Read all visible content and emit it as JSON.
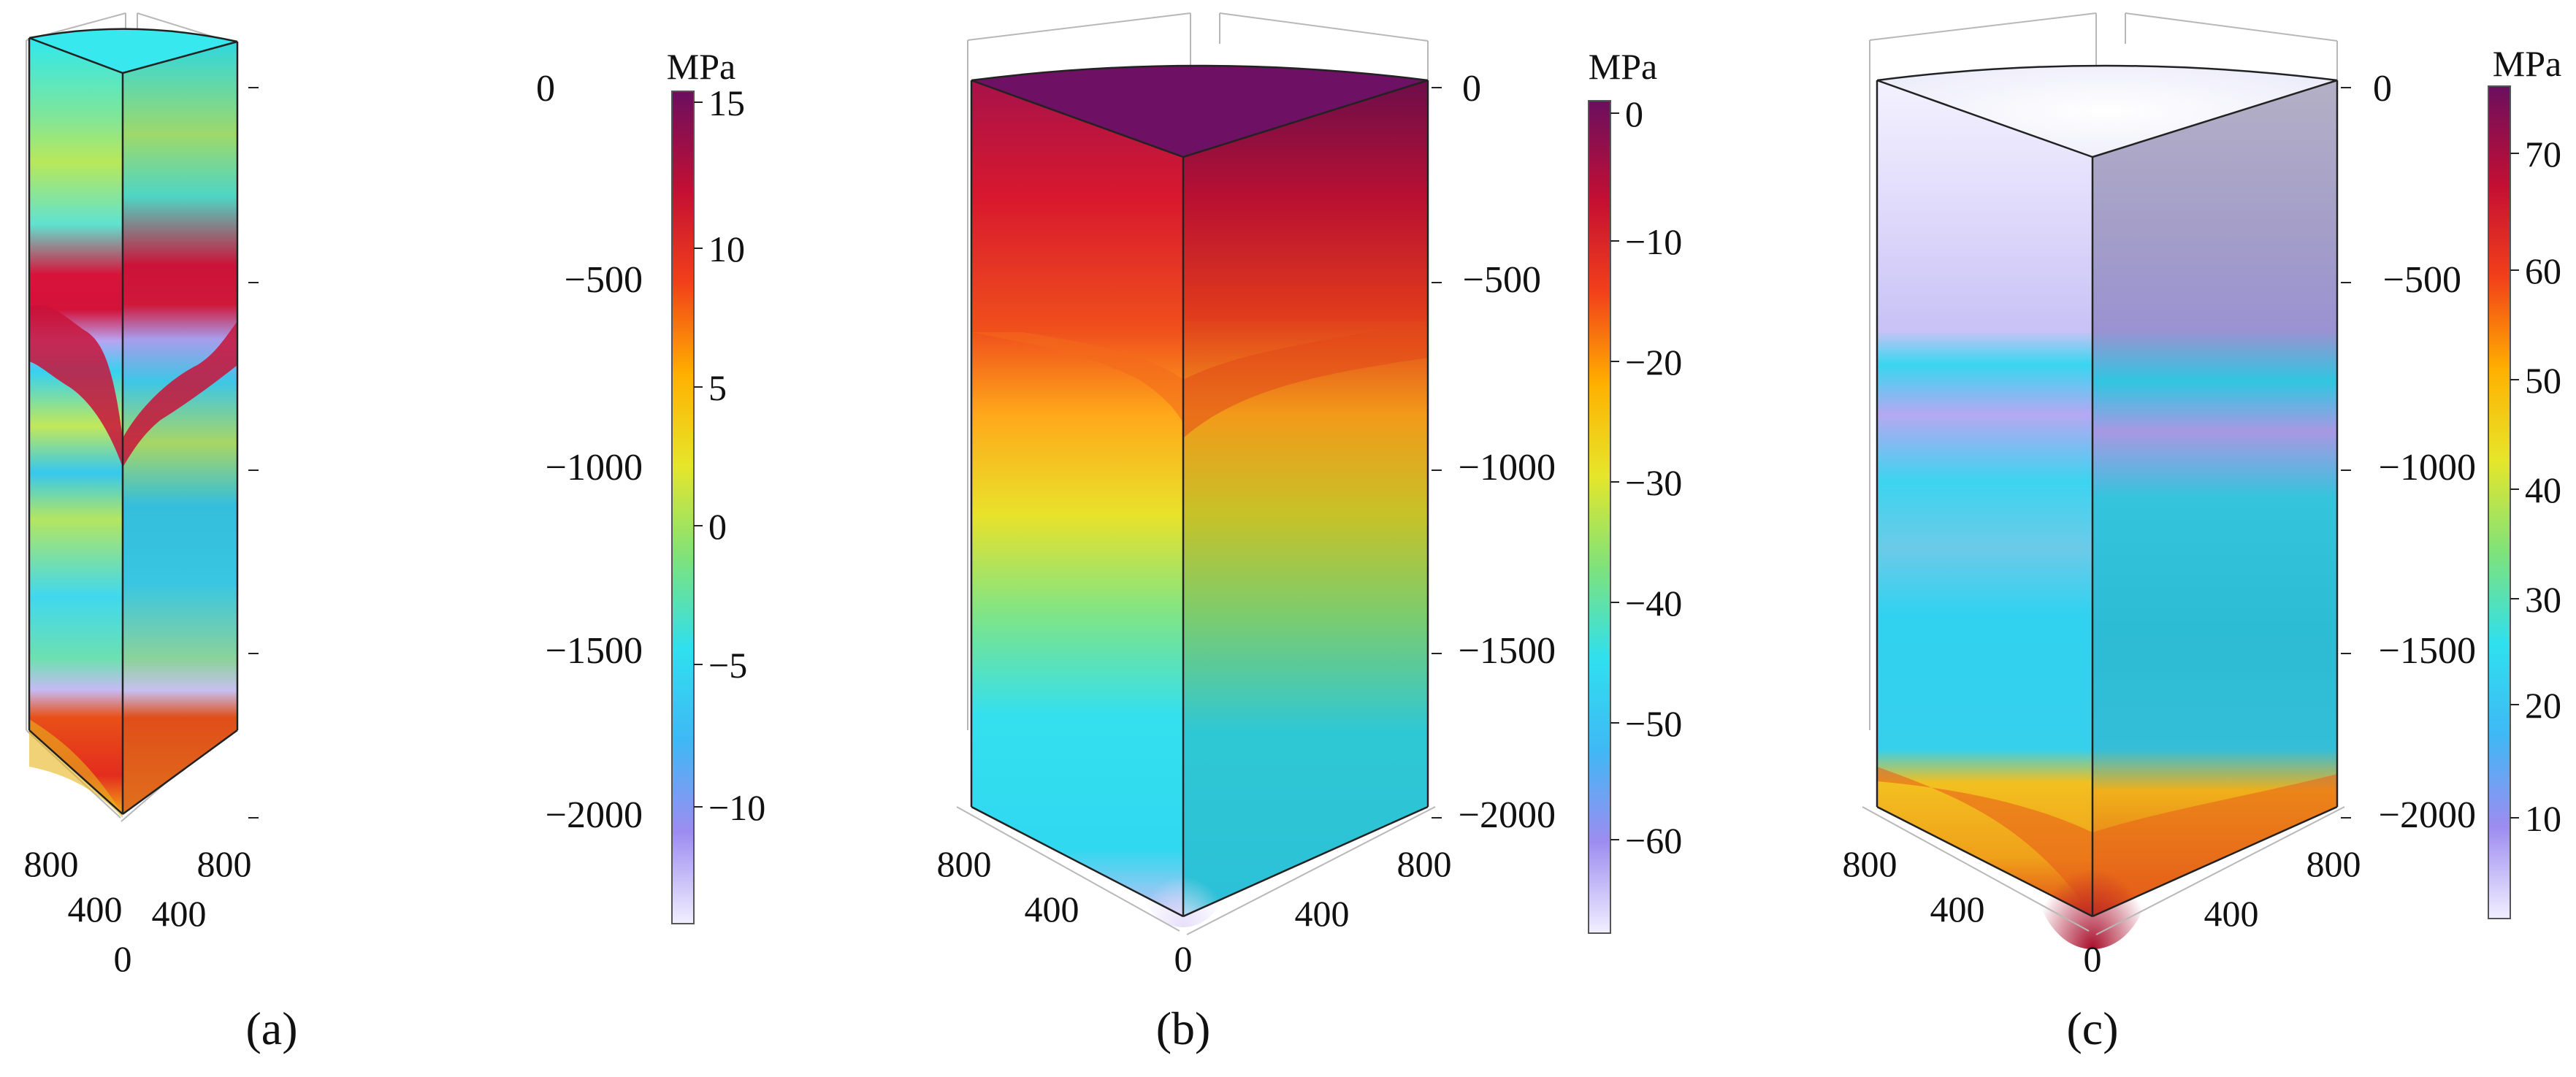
{
  "panels": [
    {
      "label": "(a)",
      "unit": "MPa",
      "colorbar_ticks": [
        "15",
        "10",
        "5",
        "0",
        "−5",
        "−10"
      ],
      "z_ticks": [
        "0",
        "−500",
        "−1000",
        "−1500",
        "−2000"
      ],
      "left_ticks": [
        "800",
        "400"
      ],
      "right_ticks": [
        "400",
        "800"
      ],
      "origin_tick": "0"
    },
    {
      "label": "(b)",
      "unit": "MPa",
      "colorbar_ticks": [
        "0",
        "−10",
        "−20",
        "−30",
        "−40",
        "−50",
        "−60"
      ],
      "z_ticks": [
        "0",
        "−500",
        "−1000",
        "−1500",
        "−2000"
      ],
      "left_ticks": [
        "800",
        "400"
      ],
      "right_ticks": [
        "400",
        "800"
      ],
      "origin_tick": "0"
    },
    {
      "label": "(c)",
      "unit": "MPa",
      "colorbar_ticks": [
        "70",
        "60",
        "50",
        "40",
        "30",
        "20",
        "10"
      ],
      "z_ticks": [
        "0",
        "−500",
        "−1000",
        "−1500",
        "−2000"
      ],
      "left_ticks": [
        "800",
        "400"
      ],
      "right_ticks": [
        "400",
        "800"
      ],
      "origin_tick": "0"
    }
  ],
  "colors": {
    "colormap": [
      "#f2efff",
      "#9d8cf0",
      "#3fb8f5",
      "#2fe0ee",
      "#7fe27a",
      "#e6e62a",
      "#ffb000",
      "#f2401a",
      "#c40f33",
      "#6a0f5e"
    ]
  }
}
